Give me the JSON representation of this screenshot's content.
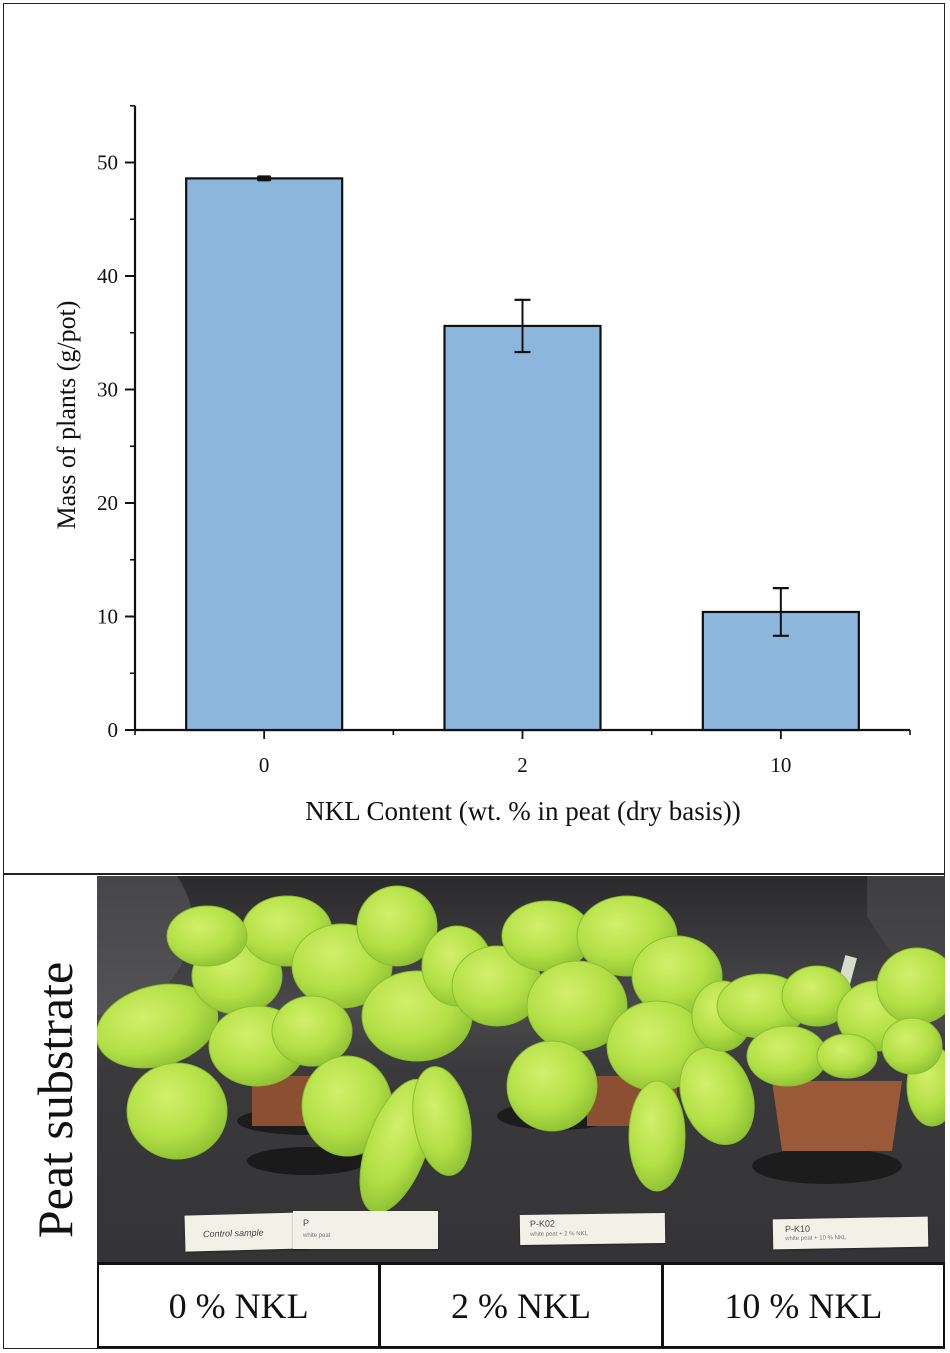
{
  "chart_data": {
    "type": "bar",
    "title": "",
    "xlabel": "NKL Content (wt. % in peat (dry basis))",
    "ylabel": "Mass of plants (g/pot)",
    "categories": [
      "0",
      "2",
      "10"
    ],
    "values": [
      48.6,
      35.6,
      10.4
    ],
    "errors": [
      0.1,
      2.3,
      2.1
    ],
    "ylim": [
      0,
      55
    ],
    "yticks": [
      0,
      10,
      20,
      30,
      40,
      50
    ],
    "ytick_labels": [
      "0",
      "10",
      "20",
      "30",
      "40",
      "50"
    ],
    "minor_yticks": [
      5,
      15,
      25,
      35,
      45,
      55
    ],
    "grid": false,
    "legend": null,
    "bar_color": "#8db6dc",
    "bar_edge_color": "#111111"
  },
  "photo_panel": {
    "side_label": "Peat substrate",
    "condition_labels": [
      "0 % NKL",
      "2 % NKL",
      "10 % NKL"
    ],
    "sample_cards": [
      {
        "line1": "Control sample",
        "line2": ""
      },
      {
        "line1": "P",
        "line2": "white peat"
      },
      {
        "line1": "P-K02",
        "line2": "white peat + 2 % NKL"
      },
      {
        "line1": "P-K10",
        "line2": "white peat + 10 % NKL"
      }
    ],
    "colors": {
      "background": "#3a3a3a",
      "leaf": "#b5e04a",
      "leaf_dark": "#8cc23a",
      "pot": "#9a5a3a",
      "saucer": "#1e1e1e"
    }
  }
}
